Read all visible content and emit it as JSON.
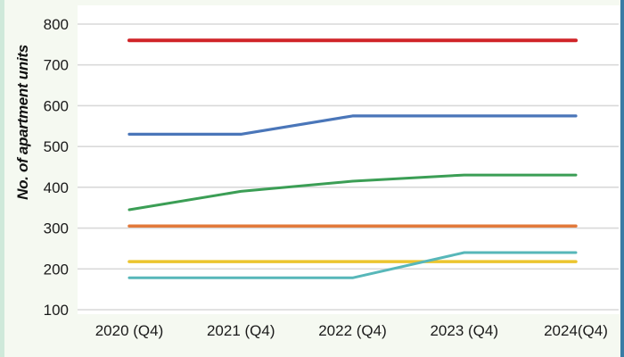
{
  "page": {
    "background_color": "#f5f9f1",
    "left_strip_color": "#cfe9da",
    "right_strip_color": "#3a7ca5",
    "plot_background": "#ffffff"
  },
  "chart_data": {
    "type": "line",
    "title": "",
    "xlabel": "",
    "ylabel": "No. of apartment units",
    "categories": [
      "2020 (Q4)",
      "2021 (Q4)",
      "2022 (Q4)",
      "2023 (Q4)",
      "2024(Q4)"
    ],
    "yticks": [
      100,
      200,
      300,
      400,
      500,
      600,
      700,
      800
    ],
    "ylim": [
      100,
      800
    ],
    "grid": true,
    "gridline_color": "#d9d9d9",
    "tick_label_color": "#1a1a1a",
    "legend_position": "none",
    "series": [
      {
        "name": "red-line",
        "color": "#d02428",
        "stroke_width": 4,
        "values": [
          760,
          760,
          760,
          760,
          760
        ]
      },
      {
        "name": "blue-line",
        "color": "#4a76b9",
        "stroke_width": 3.2,
        "values": [
          530,
          530,
          575,
          575,
          575
        ]
      },
      {
        "name": "green-line",
        "color": "#3b9e55",
        "stroke_width": 3,
        "values": [
          345,
          390,
          415,
          430,
          430
        ]
      },
      {
        "name": "orange-line",
        "color": "#e2793b",
        "stroke_width": 3.5,
        "values": [
          305,
          305,
          305,
          305,
          305
        ]
      },
      {
        "name": "yellow-line",
        "color": "#ecc52f",
        "stroke_width": 3.5,
        "values": [
          218,
          218,
          218,
          218,
          218
        ]
      },
      {
        "name": "cyan-line",
        "color": "#57b7b9",
        "stroke_width": 3,
        "values": [
          178,
          178,
          178,
          240,
          240
        ]
      }
    ]
  }
}
